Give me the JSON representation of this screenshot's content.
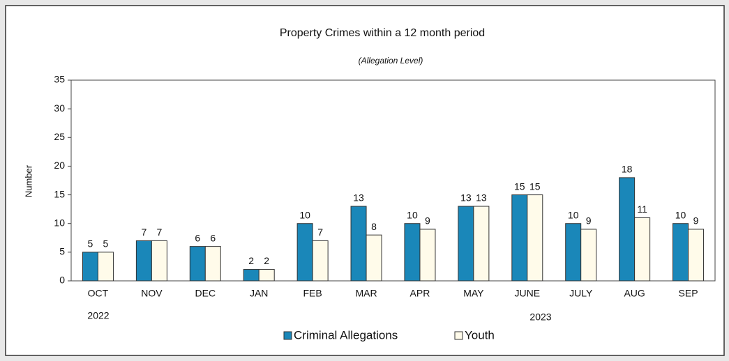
{
  "chart_data": {
    "type": "bar",
    "title": "Property Crimes within a 12 month period",
    "subtitle": "(Allegation Level)",
    "y_label": "Number",
    "categories": [
      "OCT",
      "NOV",
      "DEC",
      "JAN",
      "FEB",
      "MAR",
      "APR",
      "MAY",
      "JUNE",
      "JULY",
      "AUG",
      "SEP"
    ],
    "annotations": [
      "2022",
      "2023"
    ],
    "series": [
      {
        "name": "Criminal Allegations",
        "color": "#1a87b9",
        "values": [
          5,
          7,
          6,
          2,
          10,
          13,
          10,
          13,
          15,
          10,
          18,
          10
        ]
      },
      {
        "name": "Youth",
        "color": "#fffbea",
        "values": [
          5,
          7,
          6,
          2,
          7,
          8,
          9,
          13,
          15,
          9,
          11,
          9
        ]
      }
    ],
    "ylim": [
      0,
      35
    ],
    "yticks": [
      0,
      5,
      10,
      15,
      20,
      25,
      30,
      35
    ],
    "grid": false
  }
}
